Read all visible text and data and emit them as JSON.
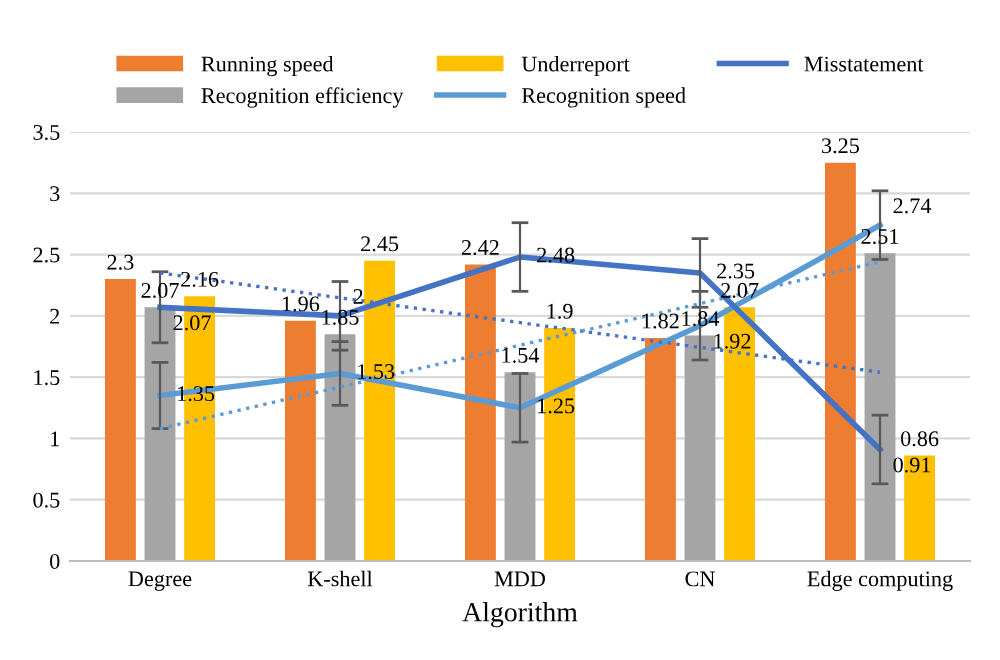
{
  "chart_data": {
    "type": "bar",
    "xlabel": "Algorithm",
    "categories": [
      "Degree",
      "K-shell",
      "MDD",
      "CN",
      "Edge computing"
    ],
    "series": [
      {
        "name": "Running speed",
        "color": "#ed7d31",
        "values": [
          2.3,
          1.96,
          2.42,
          1.82,
          3.25
        ],
        "value_labels": [
          "2.3",
          "1.96",
          "2.42",
          "1.82",
          "3.25"
        ]
      },
      {
        "name": "Recognition efficiency",
        "color": "#a5a5a5",
        "values": [
          2.07,
          1.85,
          1.54,
          1.84,
          2.51
        ],
        "value_labels": [
          "2.07",
          "1.85",
          "1.54",
          "1.84",
          "2.51"
        ]
      },
      {
        "name": "Underreport",
        "color": "#ffc000",
        "values": [
          2.16,
          2.45,
          1.9,
          2.07,
          0.86
        ],
        "value_labels": [
          "2.16",
          "2.45",
          "1.9",
          "2.07",
          "0.86"
        ]
      },
      {
        "name": "Recognition speed",
        "type": "line",
        "color": "#5b9bd5",
        "values": [
          1.35,
          1.53,
          1.25,
          1.92,
          2.74
        ],
        "errors": [
          0.27,
          0.26,
          0.28,
          0.28,
          0.28
        ],
        "value_labels": [
          "1.35",
          "1.53",
          "1.25",
          "1.92",
          "2.74"
        ]
      },
      {
        "name": "Misstatement",
        "type": "line",
        "color": "#4472c4",
        "values": [
          2.07,
          2.0,
          2.48,
          2.35,
          0.91
        ],
        "errors": [
          0.29,
          0.28,
          0.28,
          0.28,
          0.28
        ],
        "value_labels": [
          "2.07",
          "2",
          "2.48",
          "2.35",
          "0.91"
        ]
      },
      {
        "type": "line",
        "line_style": "dotted",
        "color": "#4472c4",
        "x": [
          "Degree",
          "Edge computing"
        ],
        "values": [
          2.35,
          1.54
        ]
      },
      {
        "type": "line",
        "line_style": "dotted",
        "color": "#5b9bd5",
        "x": [
          "Degree",
          "Edge computing"
        ],
        "values": [
          1.08,
          2.44
        ]
      }
    ],
    "ylim": [
      0,
      3.5
    ],
    "yticks": [
      0,
      0.5,
      1,
      1.5,
      2,
      2.5,
      3,
      3.5
    ],
    "grid": "y",
    "legend": "top"
  }
}
